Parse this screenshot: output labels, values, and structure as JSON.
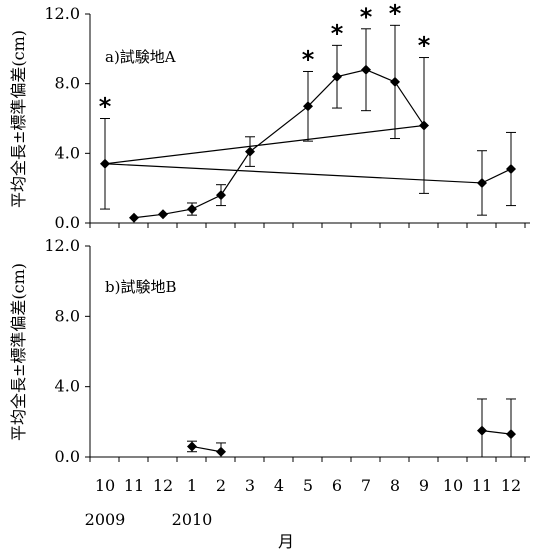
{
  "chart_data": [
    {
      "type": "line",
      "panel_label": "a)試験地A",
      "ylabel": "平均全長±標準偏差(cm)",
      "ylim": [
        0,
        12
      ],
      "yticks": [
        "0.0",
        "4.0",
        "8.0",
        "12.0"
      ],
      "x_categories": [
        "10",
        "11",
        "12",
        "1",
        "2",
        "3",
        "4",
        "5",
        "6",
        "7",
        "8",
        "9",
        "10",
        "11",
        "12"
      ],
      "series": [
        {
          "points": [
            {
              "x": "11",
              "mean": 0.3,
              "sd": 0.0,
              "sig": false
            },
            {
              "x": "12",
              "mean": 0.5,
              "sd": 0.0,
              "sig": false
            },
            {
              "x": "1",
              "mean": 0.8,
              "sd": 0.35,
              "sig": false
            },
            {
              "x": "2",
              "mean": 1.6,
              "sd": 0.6,
              "sig": false
            },
            {
              "x": "3",
              "mean": 4.1,
              "sd": 0.85,
              "sig": false
            },
            {
              "x": "5",
              "mean": 6.7,
              "sd": 2.0,
              "sig": true
            },
            {
              "x": "6",
              "mean": 8.4,
              "sd": 1.8,
              "sig": true
            },
            {
              "x": "7",
              "mean": 8.8,
              "sd": 2.35,
              "sig": true
            },
            {
              "x": "8",
              "mean": 8.1,
              "sd": 3.25,
              "sig": true
            },
            {
              "x": "9",
              "mean": 5.6,
              "sd": 3.9,
              "sig": true
            },
            {
              "x": "10",
              "mean": 3.4,
              "sd": 2.6,
              "sig": true
            },
            {
              "x": "11",
              "mean": 2.3,
              "sd": 1.85,
              "sig": false
            },
            {
              "x": "12",
              "mean": 3.1,
              "sd": 2.1,
              "sig": false
            }
          ]
        }
      ],
      "significance_marker": "*"
    },
    {
      "type": "line",
      "panel_label": "b)試験地B",
      "ylabel": "平均全長±標準偏差(cm)",
      "ylim": [
        0,
        12
      ],
      "yticks": [
        "0.0",
        "4.0",
        "8.0",
        "12.0"
      ],
      "x_categories": [
        "10",
        "11",
        "12",
        "1",
        "2",
        "3",
        "4",
        "5",
        "6",
        "7",
        "8",
        "9",
        "10",
        "11",
        "12"
      ],
      "series": [
        {
          "segments": [
            [
              {
                "x": "1",
                "mean": 0.6,
                "sd": 0.3
              },
              {
                "x": "2",
                "mean": 0.3,
                "sd": 0.5
              }
            ],
            [
              {
                "x": "11",
                "mean": 1.5,
                "sd": 1.8
              },
              {
                "x": "12",
                "mean": 1.3,
                "sd": 2.0
              }
            ]
          ]
        }
      ]
    }
  ],
  "x_axis": {
    "year_labels": [
      {
        "text": "2009",
        "at_category_index": 0
      },
      {
        "text": "2010",
        "at_category_index": 3
      }
    ],
    "xlabel": "月"
  }
}
